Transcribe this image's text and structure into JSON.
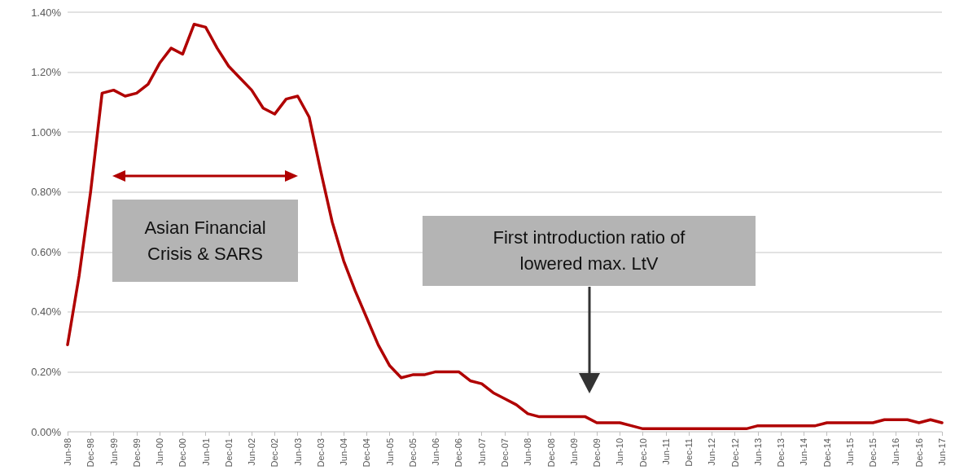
{
  "chart_data": {
    "type": "line",
    "categories": [
      "Jun-98",
      null,
      "Dec-98",
      null,
      "Jun-99",
      null,
      "Dec-99",
      null,
      "Jun-00",
      null,
      "Dec-00",
      null,
      "Jun-01",
      null,
      "Dec-01",
      null,
      "Jun-02",
      null,
      "Dec-02",
      null,
      "Jun-03",
      null,
      "Dec-03",
      null,
      "Jun-04",
      null,
      "Dec-04",
      null,
      "Jun-05",
      null,
      "Dec-05",
      null,
      "Jun-06",
      null,
      "Dec-06",
      null,
      "Jun-07",
      null,
      "Dec-07",
      null,
      "Jun-08",
      null,
      "Dec-08",
      null,
      "Jun-09",
      null,
      "Dec-09",
      null,
      "Jun-10",
      null,
      "Dec-10",
      null,
      "Jun-11",
      null,
      "Dec-11",
      null,
      "Jun-12",
      null,
      "Dec-12",
      null,
      "Jun-13",
      null,
      "Dec-13",
      null,
      "Jun-14",
      null,
      "Dec-14",
      null,
      "Jun-15",
      null,
      "Dec-15",
      null,
      "Jun-16",
      null,
      "Dec-16",
      null,
      "Jun-17"
    ],
    "series": [
      {
        "color": "#b00000",
        "values": [
          0.29,
          0.52,
          0.8,
          1.13,
          1.14,
          1.12,
          1.13,
          1.16,
          1.23,
          1.28,
          1.26,
          1.36,
          1.35,
          1.28,
          1.22,
          1.18,
          1.14,
          1.08,
          1.06,
          1.11,
          1.12,
          1.05,
          0.87,
          0.7,
          0.57,
          0.47,
          0.38,
          0.29,
          0.22,
          0.18,
          0.19,
          0.19,
          0.2,
          0.2,
          0.2,
          0.17,
          0.16,
          0.13,
          0.11,
          0.09,
          0.06,
          0.05,
          0.05,
          0.05,
          0.05,
          0.05,
          0.03,
          0.03,
          0.03,
          0.02,
          0.01,
          0.01,
          0.01,
          0.01,
          0.01,
          0.01,
          0.01,
          0.01,
          0.01,
          0.01,
          0.02,
          0.02,
          0.02,
          0.02,
          0.02,
          0.02,
          0.03,
          0.03,
          0.03,
          0.03,
          0.03,
          0.04,
          0.04,
          0.04,
          0.03,
          0.04,
          0.03
        ]
      }
    ],
    "ylim": [
      0,
      1.4
    ],
    "yticks": [
      {
        "value": 0,
        "label": "0.00%"
      },
      {
        "value": 0.2,
        "label": "0.20%"
      },
      {
        "value": 0.4,
        "label": "0.40%"
      },
      {
        "value": 0.6,
        "label": "0.60%"
      },
      {
        "value": 0.8,
        "label": "0.80%"
      },
      {
        "value": 1.0,
        "label": "1.00%"
      },
      {
        "value": 1.2,
        "label": "1.20%"
      },
      {
        "value": 1.4,
        "label": "1.40%"
      }
    ],
    "grid": "y",
    "marker": "none",
    "line_style": "solid",
    "annotations": [
      "Asian Financial Crisis & SARS",
      "First introduction ratio of lowered max. LtV"
    ]
  }
}
